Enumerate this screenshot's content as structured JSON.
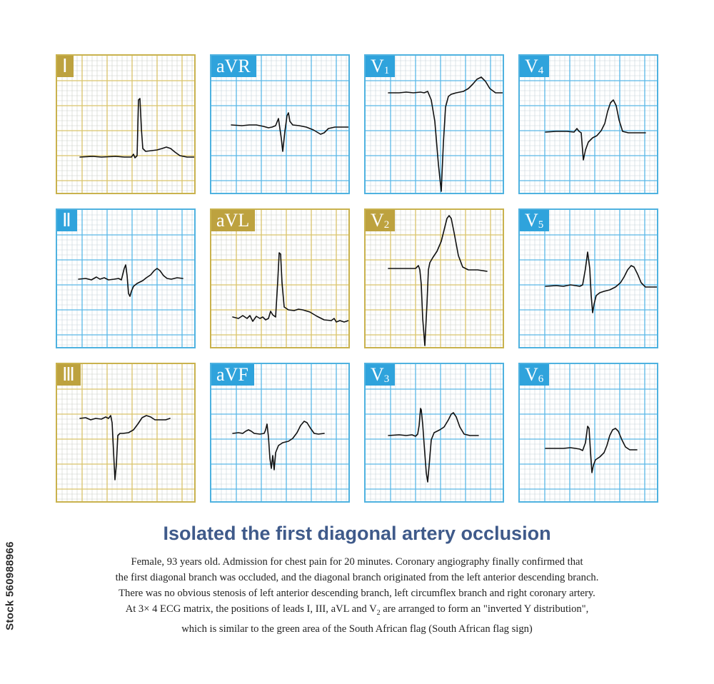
{
  "colors": {
    "highlight_border": "#c9b24e",
    "highlight_label": "#bda23f",
    "highlight_major": "#d9c46b",
    "highlight_minor": "#cbd0c8",
    "normal_border": "#4fb2e0",
    "normal_label": "#2fa3dc",
    "normal_major": "#5ab8e6",
    "normal_minor": "#c7d3d9",
    "title": "#3f5a8a",
    "trace": "#111111"
  },
  "leads": [
    {
      "id": "I",
      "label": "Ⅰ",
      "sub": "",
      "highlight": true,
      "trace": [
        [
          0,
          140
        ],
        [
          18,
          139
        ],
        [
          30,
          140
        ],
        [
          50,
          139
        ],
        [
          62,
          140
        ],
        [
          72,
          140
        ],
        [
          75,
          136
        ],
        [
          77,
          141
        ],
        [
          80,
          138
        ],
        [
          82,
          60
        ],
        [
          84,
          58
        ],
        [
          86,
          100
        ],
        [
          88,
          128
        ],
        [
          92,
          132
        ],
        [
          100,
          131
        ],
        [
          108,
          130
        ],
        [
          115,
          128
        ],
        [
          121,
          126
        ],
        [
          127,
          128
        ],
        [
          133,
          133
        ],
        [
          140,
          138
        ],
        [
          150,
          140
        ],
        [
          164,
          140
        ]
      ]
    },
    {
      "id": "aVR",
      "label": "aVR",
      "sub": "",
      "highlight": false,
      "trace": [
        [
          0,
          95
        ],
        [
          15,
          96
        ],
        [
          25,
          95
        ],
        [
          35,
          95
        ],
        [
          45,
          97
        ],
        [
          52,
          99
        ],
        [
          57,
          98
        ],
        [
          62,
          96
        ],
        [
          66,
          86
        ],
        [
          68,
          100
        ],
        [
          70,
          114
        ],
        [
          72,
          132
        ],
        [
          75,
          104
        ],
        [
          78,
          82
        ],
        [
          80,
          78
        ],
        [
          82,
          90
        ],
        [
          86,
          95
        ],
        [
          95,
          96
        ],
        [
          105,
          98
        ],
        [
          115,
          102
        ],
        [
          120,
          105
        ],
        [
          125,
          108
        ],
        [
          130,
          106
        ],
        [
          136,
          100
        ],
        [
          145,
          98
        ],
        [
          160,
          98
        ],
        [
          172,
          98
        ]
      ]
    },
    {
      "id": "V1",
      "label": "V",
      "sub": "1",
      "highlight": false,
      "trace": [
        [
          0,
          50
        ],
        [
          15,
          50
        ],
        [
          25,
          49
        ],
        [
          35,
          50
        ],
        [
          45,
          49
        ],
        [
          50,
          50
        ],
        [
          55,
          48
        ],
        [
          60,
          60
        ],
        [
          65,
          90
        ],
        [
          70,
          150
        ],
        [
          74,
          188
        ],
        [
          77,
          120
        ],
        [
          80,
          70
        ],
        [
          84,
          55
        ],
        [
          88,
          52
        ],
        [
          95,
          50
        ],
        [
          105,
          48
        ],
        [
          112,
          44
        ],
        [
          118,
          38
        ],
        [
          124,
          31
        ],
        [
          130,
          28
        ],
        [
          136,
          34
        ],
        [
          142,
          44
        ],
        [
          150,
          50
        ],
        [
          165,
          50
        ],
        [
          175,
          50
        ]
      ]
    },
    {
      "id": "V4",
      "label": "V",
      "sub": "4",
      "highlight": false,
      "trace": [
        [
          0,
          105
        ],
        [
          15,
          104
        ],
        [
          30,
          104
        ],
        [
          40,
          105
        ],
        [
          44,
          100
        ],
        [
          47,
          104
        ],
        [
          50,
          106
        ],
        [
          53,
          144
        ],
        [
          56,
          130
        ],
        [
          60,
          119
        ],
        [
          66,
          113
        ],
        [
          72,
          110
        ],
        [
          78,
          103
        ],
        [
          83,
          93
        ],
        [
          87,
          76
        ],
        [
          91,
          64
        ],
        [
          95,
          60
        ],
        [
          99,
          68
        ],
        [
          103,
          88
        ],
        [
          108,
          104
        ],
        [
          116,
          106
        ],
        [
          130,
          106
        ],
        [
          140,
          106
        ]
      ]
    },
    {
      "id": "II",
      "label": "Ⅱ",
      "sub": "",
      "highlight": false,
      "trace": [
        [
          0,
          95
        ],
        [
          10,
          94
        ],
        [
          18,
          96
        ],
        [
          25,
          92
        ],
        [
          30,
          95
        ],
        [
          36,
          93
        ],
        [
          42,
          96
        ],
        [
          50,
          95
        ],
        [
          56,
          94
        ],
        [
          60,
          96
        ],
        [
          64,
          80
        ],
        [
          66,
          75
        ],
        [
          68,
          90
        ],
        [
          70,
          115
        ],
        [
          72,
          119
        ],
        [
          74,
          112
        ],
        [
          77,
          105
        ],
        [
          82,
          101
        ],
        [
          90,
          97
        ],
        [
          95,
          93
        ],
        [
          101,
          89
        ],
        [
          106,
          83
        ],
        [
          110,
          80
        ],
        [
          114,
          83
        ],
        [
          119,
          90
        ],
        [
          124,
          94
        ],
        [
          130,
          95
        ],
        [
          138,
          93
        ],
        [
          146,
          94
        ]
      ]
    },
    {
      "id": "aVL",
      "label": "aVL",
      "sub": "",
      "highlight": true,
      "trace": [
        [
          0,
          148
        ],
        [
          8,
          150
        ],
        [
          14,
          146
        ],
        [
          20,
          150
        ],
        [
          24,
          146
        ],
        [
          28,
          154
        ],
        [
          33,
          147
        ],
        [
          38,
          150
        ],
        [
          42,
          148
        ],
        [
          46,
          152
        ],
        [
          50,
          150
        ],
        [
          53,
          140
        ],
        [
          56,
          145
        ],
        [
          60,
          148
        ],
        [
          63,
          98
        ],
        [
          65,
          58
        ],
        [
          67,
          60
        ],
        [
          69,
          100
        ],
        [
          72,
          134
        ],
        [
          78,
          138
        ],
        [
          86,
          139
        ],
        [
          92,
          137
        ],
        [
          98,
          138
        ],
        [
          108,
          141
        ],
        [
          118,
          147
        ],
        [
          128,
          152
        ],
        [
          138,
          153
        ],
        [
          142,
          150
        ],
        [
          145,
          155
        ],
        [
          150,
          153
        ],
        [
          156,
          155
        ],
        [
          162,
          153
        ]
      ]
    },
    {
      "id": "V2",
      "label": "V",
      "sub": "2",
      "highlight": true,
      "trace": [
        [
          0,
          80
        ],
        [
          15,
          80
        ],
        [
          28,
          80
        ],
        [
          38,
          80
        ],
        [
          42,
          76
        ],
        [
          44,
          82
        ],
        [
          46,
          102
        ],
        [
          48,
          150
        ],
        [
          51,
          188
        ],
        [
          54,
          130
        ],
        [
          56,
          82
        ],
        [
          58,
          72
        ],
        [
          62,
          65
        ],
        [
          68,
          56
        ],
        [
          74,
          42
        ],
        [
          79,
          22
        ],
        [
          82,
          10
        ],
        [
          85,
          6
        ],
        [
          88,
          10
        ],
        [
          92,
          30
        ],
        [
          98,
          62
        ],
        [
          104,
          78
        ],
        [
          112,
          82
        ],
        [
          125,
          82
        ],
        [
          138,
          84
        ]
      ]
    },
    {
      "id": "V5",
      "label": "V",
      "sub": "5",
      "highlight": false,
      "trace": [
        [
          0,
          105
        ],
        [
          15,
          104
        ],
        [
          25,
          105
        ],
        [
          35,
          103
        ],
        [
          42,
          104
        ],
        [
          48,
          105
        ],
        [
          52,
          103
        ],
        [
          56,
          80
        ],
        [
          59,
          57
        ],
        [
          62,
          80
        ],
        [
          64,
          118
        ],
        [
          66,
          142
        ],
        [
          68,
          130
        ],
        [
          71,
          118
        ],
        [
          76,
          114
        ],
        [
          82,
          112
        ],
        [
          90,
          110
        ],
        [
          98,
          106
        ],
        [
          105,
          100
        ],
        [
          110,
          92
        ],
        [
          115,
          82
        ],
        [
          120,
          76
        ],
        [
          124,
          78
        ],
        [
          129,
          88
        ],
        [
          134,
          100
        ],
        [
          140,
          106
        ],
        [
          150,
          106
        ],
        [
          162,
          106
        ]
      ]
    },
    {
      "id": "III",
      "label": "Ⅲ",
      "sub": "",
      "highlight": true,
      "trace": [
        [
          0,
          74
        ],
        [
          8,
          73
        ],
        [
          15,
          76
        ],
        [
          22,
          74
        ],
        [
          30,
          75
        ],
        [
          36,
          72
        ],
        [
          40,
          74
        ],
        [
          43,
          70
        ],
        [
          45,
          80
        ],
        [
          47,
          120
        ],
        [
          49,
          160
        ],
        [
          51,
          138
        ],
        [
          53,
          98
        ],
        [
          56,
          95
        ],
        [
          60,
          95
        ],
        [
          68,
          94
        ],
        [
          75,
          90
        ],
        [
          81,
          82
        ],
        [
          87,
          73
        ],
        [
          93,
          70
        ],
        [
          99,
          72
        ],
        [
          105,
          76
        ],
        [
          112,
          76
        ],
        [
          120,
          76
        ],
        [
          126,
          74
        ]
      ]
    },
    {
      "id": "aVF",
      "label": "aVF",
      "sub": "",
      "highlight": false,
      "trace": [
        [
          0,
          95
        ],
        [
          8,
          94
        ],
        [
          14,
          95
        ],
        [
          18,
          92
        ],
        [
          22,
          90
        ],
        [
          26,
          92
        ],
        [
          30,
          95
        ],
        [
          38,
          96
        ],
        [
          44,
          95
        ],
        [
          46,
          90
        ],
        [
          48,
          82
        ],
        [
          50,
          100
        ],
        [
          52,
          130
        ],
        [
          54,
          144
        ],
        [
          56,
          126
        ],
        [
          58,
          146
        ],
        [
          60,
          122
        ],
        [
          64,
          112
        ],
        [
          70,
          108
        ],
        [
          78,
          106
        ],
        [
          84,
          102
        ],
        [
          90,
          94
        ],
        [
          95,
          84
        ],
        [
          100,
          78
        ],
        [
          104,
          80
        ],
        [
          109,
          88
        ],
        [
          114,
          95
        ],
        [
          120,
          96
        ],
        [
          128,
          95
        ]
      ]
    },
    {
      "id": "V3",
      "label": "V",
      "sub": "3",
      "highlight": false,
      "trace": [
        [
          0,
          98
        ],
        [
          15,
          97
        ],
        [
          25,
          98
        ],
        [
          33,
          97
        ],
        [
          38,
          99
        ],
        [
          41,
          96
        ],
        [
          43,
          84
        ],
        [
          45,
          60
        ],
        [
          46,
          62
        ],
        [
          48,
          82
        ],
        [
          50,
          110
        ],
        [
          53,
          150
        ],
        [
          55,
          163
        ],
        [
          57,
          140
        ],
        [
          60,
          104
        ],
        [
          64,
          94
        ],
        [
          72,
          90
        ],
        [
          78,
          86
        ],
        [
          84,
          76
        ],
        [
          88,
          68
        ],
        [
          91,
          66
        ],
        [
          95,
          72
        ],
        [
          100,
          86
        ],
        [
          106,
          96
        ],
        [
          114,
          98
        ],
        [
          126,
          98
        ]
      ]
    },
    {
      "id": "V6",
      "label": "V",
      "sub": "6",
      "highlight": false,
      "trace": [
        [
          0,
          116
        ],
        [
          15,
          116
        ],
        [
          25,
          116
        ],
        [
          35,
          115
        ],
        [
          42,
          116
        ],
        [
          48,
          117
        ],
        [
          52,
          119
        ],
        [
          56,
          108
        ],
        [
          59,
          85
        ],
        [
          61,
          88
        ],
        [
          63,
          120
        ],
        [
          65,
          150
        ],
        [
          67,
          140
        ],
        [
          70,
          132
        ],
        [
          76,
          128
        ],
        [
          82,
          122
        ],
        [
          86,
          112
        ],
        [
          90,
          98
        ],
        [
          94,
          90
        ],
        [
          98,
          88
        ],
        [
          102,
          92
        ],
        [
          107,
          104
        ],
        [
          112,
          114
        ],
        [
          118,
          118
        ],
        [
          128,
          118
        ]
      ]
    }
  ],
  "title": "Isolated the first diagonal artery occlusion",
  "caption": {
    "line1": "Female, 93 years old. Admission for chest pain for 20 minutes. Coronary angiography finally confirmed that",
    "line2": "the first diagonal branch was occluded, and the diagonal branch originated from the left anterior descending branch.",
    "line3": "There was no obvious stenosis of left anterior descending branch, left circumflex branch and right coronary artery.",
    "line4a": "At 3× 4 ECG matrix, the positions of leads I, III, aVL and V",
    "line4sub": "2",
    "line4b": " are arranged to form an \"inverted Y distribution\",",
    "line5": "which is similar to the green area of the South African flag (South African flag sign)"
  },
  "watermark": "Stock 560988966"
}
